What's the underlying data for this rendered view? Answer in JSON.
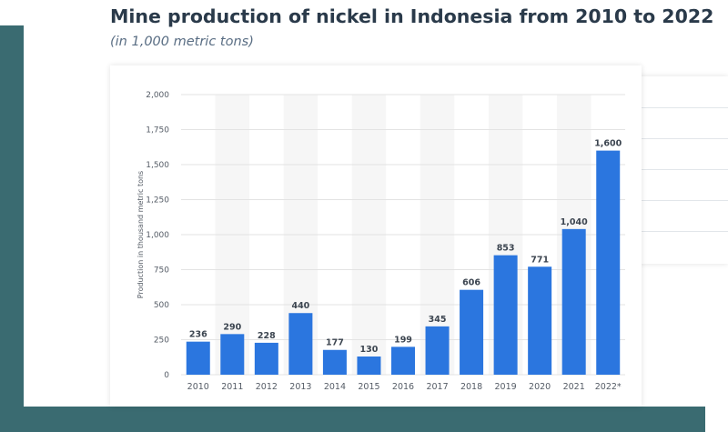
{
  "chart_data": {
    "type": "bar",
    "title": "Mine production of nickel in Indonesia from 2010 to 2022",
    "subtitle": "(in 1,000 metric tons)",
    "ylabel": "Production in thousand metric tons",
    "xlabel": "",
    "categories": [
      "2010",
      "2011",
      "2012",
      "2013",
      "2014",
      "2015",
      "2016",
      "2017",
      "2018",
      "2019",
      "2020",
      "2021",
      "2022*"
    ],
    "values": [
      236,
      290,
      228,
      440,
      177,
      130,
      199,
      345,
      606,
      853,
      771,
      1040,
      1600
    ],
    "value_labels": [
      "236",
      "290",
      "228",
      "440",
      "177",
      "130",
      "199",
      "345",
      "606",
      "853",
      "771",
      "1,040",
      "1,600"
    ],
    "ylim": [
      0,
      2000
    ],
    "yticks": [
      0,
      250,
      500,
      750,
      1000,
      1250,
      1500,
      1750,
      2000
    ],
    "ytick_labels": [
      "0",
      "250",
      "500",
      "750",
      "1,000",
      "1,250",
      "1,500",
      "1,750",
      "2,000"
    ],
    "grid": true,
    "bar_color": "#2b76df",
    "band_color": "#f6f6f6",
    "grid_color": "#e3e3e3"
  }
}
